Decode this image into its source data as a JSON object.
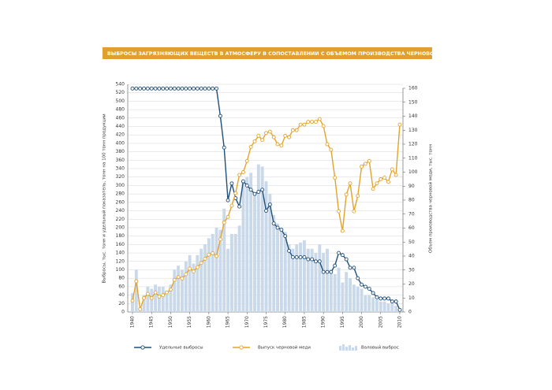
{
  "chart_data": {
    "type": "line",
    "title": "ВЫБРОСЫ ЗАГРЯЗНЯЮЩИХ ВЕЩЕСТВ В АТМОСФЕРУ В СОПОСТАВЛЕНИИ С ОБЪЕМОМ ПРОИЗВОДСТВА ЧЕРНОВОЙ МЕДИ",
    "ylabel": "Выбросы, тыс. тонн и удельный показатель, тонн на 100 тонн продукции",
    "y2label": "Объем производства черновой меди, тыс. тонн",
    "x": [
      1940,
      1941,
      1942,
      1943,
      1944,
      1945,
      1946,
      1947,
      1948,
      1949,
      1950,
      1951,
      1952,
      1953,
      1954,
      1955,
      1956,
      1957,
      1958,
      1959,
      1960,
      1961,
      1962,
      1963,
      1964,
      1965,
      1966,
      1967,
      1968,
      1969,
      1970,
      1971,
      1972,
      1973,
      1974,
      1975,
      1976,
      1977,
      1978,
      1979,
      1980,
      1981,
      1982,
      1983,
      1984,
      1985,
      1986,
      1987,
      1988,
      1989,
      1990,
      1991,
      1992,
      1993,
      1994,
      1995,
      1996,
      1997,
      1998,
      1999,
      2000,
      2001,
      2002,
      2003,
      2004,
      2005,
      2006,
      2007,
      2008,
      2009,
      2010
    ],
    "xlim": [
      1940,
      2010
    ],
    "xticks": [
      1940,
      1945,
      1950,
      1955,
      1960,
      1965,
      1970,
      1975,
      1980,
      1985,
      1990,
      1995,
      2000,
      2005,
      2010
    ],
    "ylim": [
      0,
      540
    ],
    "yticks": [
      0,
      20,
      40,
      60,
      80,
      100,
      120,
      140,
      160,
      180,
      200,
      220,
      240,
      260,
      280,
      300,
      320,
      340,
      360,
      380,
      400,
      420,
      440,
      460,
      480,
      500,
      520,
      540
    ],
    "y2lim": [
      0,
      160
    ],
    "y2ticks": [
      0,
      10,
      20,
      30,
      40,
      50,
      60,
      70,
      80,
      90,
      100,
      110,
      120,
      130,
      140,
      150,
      160
    ],
    "grid": true,
    "series": [
      {
        "name": "Валовый выброс",
        "type": "bar",
        "color": "#c9d9ea",
        "values": [
          45,
          100,
          10,
          40,
          60,
          55,
          65,
          60,
          60,
          50,
          65,
          100,
          110,
          100,
          120,
          135,
          115,
          135,
          150,
          160,
          175,
          185,
          200,
          195,
          245,
          150,
          185,
          185,
          205,
          310,
          320,
          330,
          280,
          350,
          345,
          310,
          280,
          230,
          210,
          200,
          190,
          160,
          150,
          160,
          165,
          170,
          150,
          150,
          140,
          160,
          140,
          150,
          100,
          90,
          105,
          70,
          95,
          80,
          65,
          60,
          55,
          40,
          40,
          35,
          30,
          25,
          25,
          20,
          20,
          15,
          5
        ]
      },
      {
        "name": "Удельные выбросы",
        "type": "line",
        "color": "#1f4e79",
        "values": [
          530,
          530,
          530,
          530,
          530,
          530,
          530,
          530,
          530,
          530,
          530,
          530,
          530,
          530,
          530,
          530,
          530,
          530,
          530,
          530,
          530,
          530,
          530,
          465,
          390,
          265,
          305,
          270,
          250,
          310,
          300,
          290,
          280,
          285,
          290,
          240,
          255,
          210,
          200,
          195,
          180,
          145,
          130,
          130,
          130,
          130,
          125,
          125,
          120,
          120,
          95,
          95,
          95,
          110,
          140,
          135,
          125,
          105,
          105,
          80,
          65,
          60,
          55,
          45,
          35,
          32,
          32,
          32,
          25,
          25,
          5
        ]
      },
      {
        "name": "Выпуск черновой меди",
        "type": "line",
        "color": "#e3a32b",
        "axis": "y2",
        "values": [
          8,
          22,
          2,
          10,
          13,
          10,
          14,
          11,
          12,
          14,
          16,
          23,
          25,
          24,
          27,
          31,
          29,
          32,
          35,
          38,
          41,
          42,
          40,
          52,
          64,
          68,
          76,
          85,
          98,
          100,
          108,
          118,
          122,
          126,
          123,
          128,
          129,
          125,
          120,
          119,
          126,
          125,
          130,
          130,
          134,
          134,
          136,
          136,
          136,
          138,
          133,
          120,
          116,
          96,
          72,
          58,
          84,
          92,
          72,
          83,
          104,
          106,
          108,
          88,
          92,
          95,
          96,
          93,
          102,
          98,
          134
        ]
      }
    ]
  }
}
